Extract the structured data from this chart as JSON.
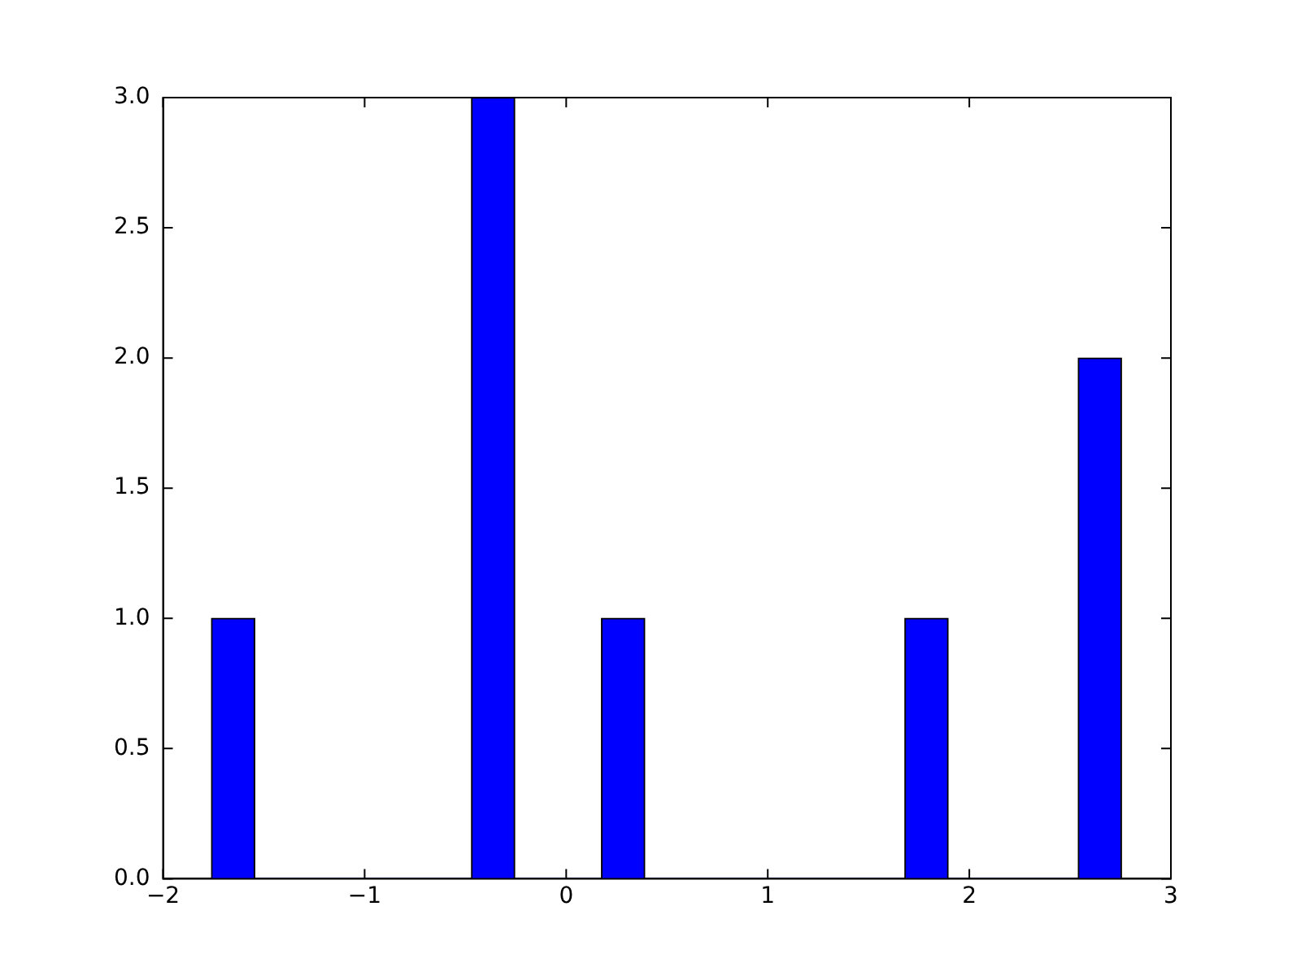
{
  "chart_data": {
    "type": "histogram",
    "color": "#0000ff",
    "bins": [
      -1.76,
      -1.545,
      -1.33,
      -1.115,
      -0.9,
      -0.685,
      -0.47,
      -0.255,
      -0.04,
      0.175,
      0.39,
      0.605,
      0.82,
      1.035,
      1.25,
      1.465,
      1.68,
      1.895,
      2.11,
      2.325,
      2.54,
      2.755
    ],
    "values": [
      1,
      0,
      0,
      0,
      0,
      0,
      3,
      0,
      0,
      1,
      0,
      0,
      0,
      0,
      0,
      0,
      1,
      0,
      0,
      0,
      2
    ],
    "xlim": [
      -2,
      3
    ],
    "xticks": [
      {
        "value": -2,
        "label": "−2"
      },
      {
        "value": -1,
        "label": "−1"
      },
      0,
      1,
      2,
      3
    ],
    "ylim": [
      0,
      3
    ],
    "yticks": [
      {
        "value": 0,
        "label": "0.0"
      },
      {
        "value": 0.5,
        "label": "0.5"
      },
      {
        "value": 1,
        "label": "1.0"
      },
      {
        "value": 1.5,
        "label": "1.5"
      },
      {
        "value": 2,
        "label": "2.0"
      },
      {
        "value": 2.5,
        "label": "2.5"
      },
      {
        "value": 3,
        "label": "3.0"
      }
    ],
    "grid": false,
    "legend": false
  }
}
